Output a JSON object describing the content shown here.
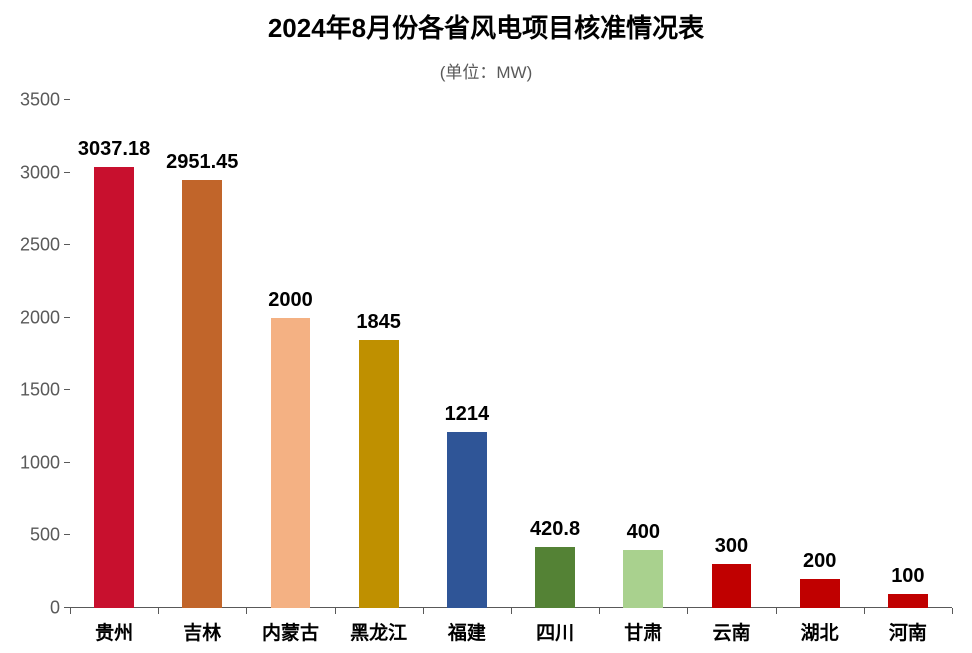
{
  "chart": {
    "type": "bar",
    "title": "2024年8月份各省风电项目核准情况表",
    "title_fontsize": 26,
    "title_fontweight": 700,
    "title_color": "#000000",
    "subtitle": "(单位：MW)",
    "subtitle_fontsize": 17,
    "subtitle_color": "#595959",
    "background_color": "#ffffff",
    "ylim": [
      0,
      3500
    ],
    "ytick_step": 500,
    "yticks": [
      0,
      500,
      1000,
      1500,
      2000,
      2500,
      3000,
      3500
    ],
    "ytick_fontsize": 18,
    "ytick_color": "#595959",
    "axis_color": "#595959",
    "grid": false,
    "bar_width_ratio": 0.45,
    "value_label_fontsize": 20,
    "value_label_fontweight": 700,
    "value_label_color": "#000000",
    "xtick_fontsize": 19,
    "xtick_fontweight": 700,
    "xtick_color": "#000000",
    "categories": [
      "贵州",
      "吉林",
      "内蒙古",
      "黑龙江",
      "福建",
      "四川",
      "甘肃",
      "云南",
      "湖北",
      "河南"
    ],
    "values": [
      3037.18,
      2951.45,
      2000,
      1845,
      1214,
      420.8,
      400,
      300,
      200,
      100
    ],
    "value_labels": [
      "3037.18",
      "2951.45",
      "2000",
      "1845",
      "1214",
      "420.8",
      "400",
      "300",
      "200",
      "100"
    ],
    "bar_colors": [
      "#c8102e",
      "#c1652a",
      "#f4b183",
      "#bf9000",
      "#2f5597",
      "#548235",
      "#a9d18e",
      "#c00000",
      "#c00000",
      "#c00000"
    ]
  }
}
